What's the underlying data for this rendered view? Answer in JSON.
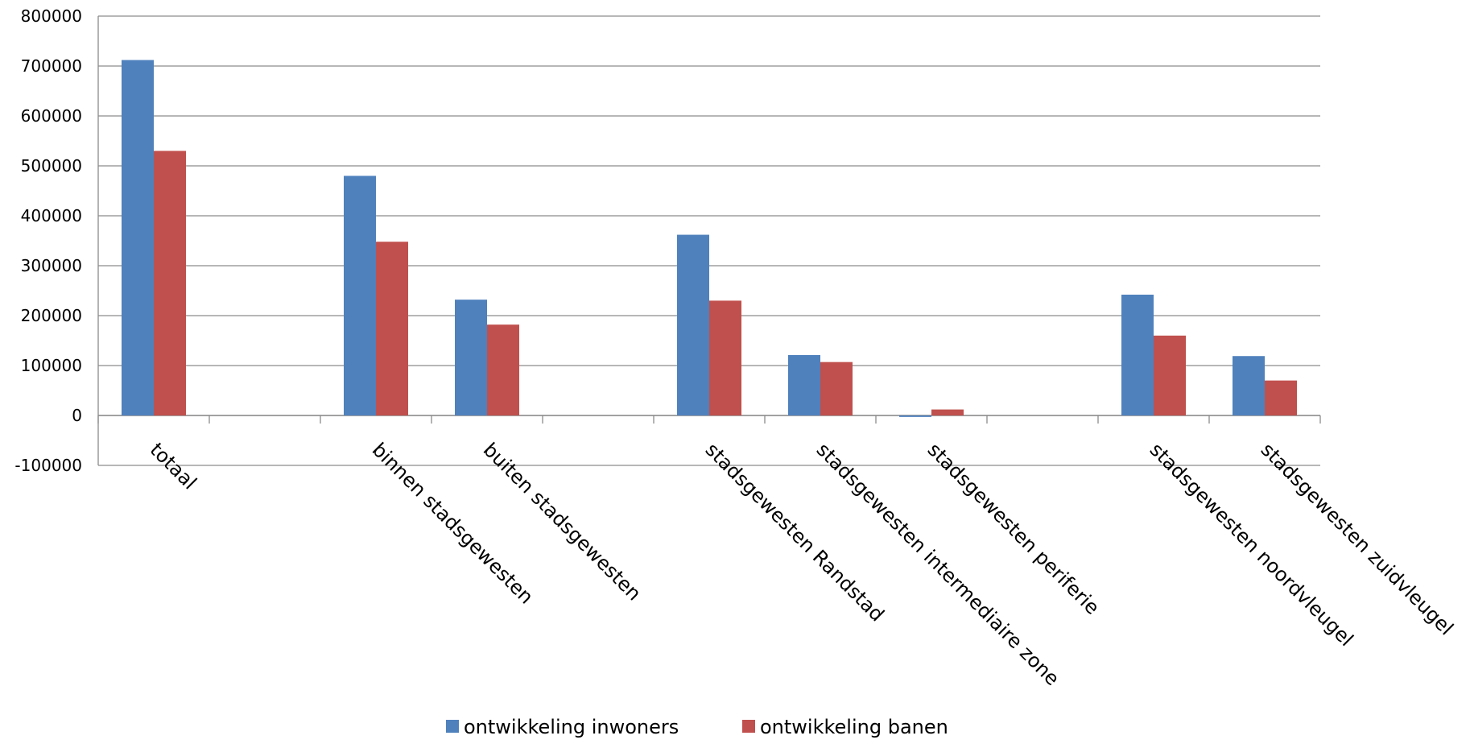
{
  "chart_data": {
    "type": "bar",
    "title": "",
    "xlabel": "",
    "ylabel": "",
    "ylim": [
      -100000,
      800000
    ],
    "ytick_step": 100000,
    "yticks": [
      "800000",
      "700000",
      "600000",
      "500000",
      "400000",
      "300000",
      "200000",
      "100000",
      "0",
      "-100000"
    ],
    "grid": true,
    "legend_position": "bottom",
    "categories": [
      "totaal",
      "",
      "binnen stadsgewesten",
      "buiten stadsgewesten",
      "",
      "stadsgewesten Randstad",
      "stadsgewesten intermediaire zone",
      "stadsgewesten periferie",
      "",
      "stadsgewesten noordvleugel",
      "stadsgewesten zuidvleugel"
    ],
    "series": [
      {
        "name": "ontwikkeling inwoners",
        "color": "#4F81BD",
        "values": [
          712000,
          null,
          480000,
          232000,
          null,
          362000,
          121000,
          -3000,
          null,
          242000,
          119000
        ]
      },
      {
        "name": "ontwikkeling banen",
        "color": "#C0504D",
        "values": [
          530000,
          null,
          348000,
          182000,
          null,
          230000,
          107000,
          12000,
          null,
          160000,
          70000
        ]
      }
    ]
  }
}
